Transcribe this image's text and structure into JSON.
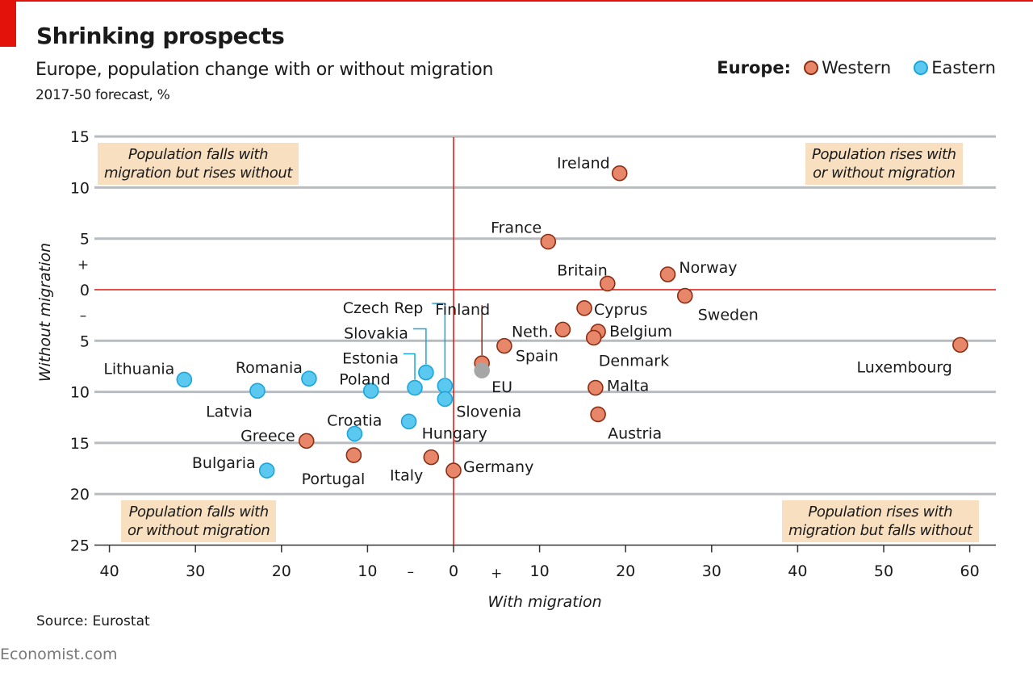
{
  "header": {
    "title": "Shrinking prospects",
    "subtitle": "Europe, population change with or without migration",
    "units": "2017-50 forecast, %"
  },
  "legend": {
    "label": "Europe:",
    "items": [
      {
        "name": "Western",
        "fill": "#e8866a",
        "stroke": "#8b2e14"
      },
      {
        "name": "Eastern",
        "fill": "#5bc8ef",
        "stroke": "#1aa6dc"
      }
    ]
  },
  "footer": {
    "source": "Source: Eurostat",
    "brand": "Economist.com"
  },
  "colors": {
    "accent": "#e3120b",
    "grid": "#b8bcc0",
    "quadrant_box": "#f7dfc0",
    "eu": "#a6a6a6"
  },
  "chart_data": {
    "type": "scatter",
    "title": "Shrinking prospects",
    "subtitle": "Europe, population change with or without migration, 2017-50 forecast, %",
    "xlabel": "With migration",
    "ylabel": "Without migration",
    "xlim": [
      -42,
      63
    ],
    "ylim": [
      -25,
      15
    ],
    "x_ticks": [
      -40,
      -30,
      -20,
      -10,
      0,
      10,
      20,
      30,
      40,
      50,
      60
    ],
    "x_tick_labels": [
      "40",
      "30",
      "20",
      "10",
      "0",
      "10",
      "20",
      "30",
      "40",
      "50",
      "60"
    ],
    "x_sign_labels": {
      "negative": "–",
      "positive": "+"
    },
    "y_ticks": [
      15,
      10,
      5,
      0,
      -5,
      -10,
      -15,
      -20,
      -25
    ],
    "y_tick_labels": [
      "15",
      "10",
      "5",
      "0",
      "5",
      "10",
      "15",
      "20",
      "25"
    ],
    "y_sign_labels": {
      "positive": "+",
      "negative": "–"
    },
    "grid": true,
    "legend_position": "top-right",
    "quadrant_labels": {
      "top_left": [
        "Population falls with",
        "migration but rises without"
      ],
      "top_right": [
        "Population rises with",
        "or without migration"
      ],
      "bottom_left": [
        "Population falls with",
        "or without migration"
      ],
      "bottom_right": [
        "Population rises with",
        "migration but falls without"
      ]
    },
    "series": [
      {
        "name": "Western",
        "points": [
          {
            "label": "Ireland",
            "x": 19.3,
            "y": 11.4
          },
          {
            "label": "France",
            "x": 11.0,
            "y": 4.7
          },
          {
            "label": "Britain",
            "x": 17.9,
            "y": 0.6
          },
          {
            "label": "Norway",
            "x": 24.9,
            "y": 1.5
          },
          {
            "label": "Sweden",
            "x": 26.9,
            "y": -0.6
          },
          {
            "label": "Cyprus",
            "x": 15.2,
            "y": -1.8
          },
          {
            "label": "Neth.",
            "x": 12.7,
            "y": -3.9
          },
          {
            "label": "Belgium",
            "x": 16.8,
            "y": -4.1
          },
          {
            "label": "Denmark",
            "x": 16.3,
            "y": -4.7
          },
          {
            "label": "Spain",
            "x": 5.9,
            "y": -5.5
          },
          {
            "label": "Finland",
            "x": 3.3,
            "y": -7.2
          },
          {
            "label": "Malta",
            "x": 16.5,
            "y": -9.6
          },
          {
            "label": "Austria",
            "x": 16.8,
            "y": -12.2
          },
          {
            "label": "Luxembourg",
            "x": 58.9,
            "y": -5.4
          },
          {
            "label": "Germany",
            "x": 0.0,
            "y": -17.7
          },
          {
            "label": "Italy",
            "x": -2.6,
            "y": -16.4
          },
          {
            "label": "Portugal",
            "x": -11.6,
            "y": -16.2
          },
          {
            "label": "Greece",
            "x": -17.1,
            "y": -14.8
          }
        ]
      },
      {
        "name": "Eastern",
        "points": [
          {
            "label": "Lithuania",
            "x": -31.3,
            "y": -8.8
          },
          {
            "label": "Latvia",
            "x": -22.8,
            "y": -9.9
          },
          {
            "label": "Romania",
            "x": -16.8,
            "y": -8.7
          },
          {
            "label": "Bulgaria",
            "x": -21.7,
            "y": -17.7
          },
          {
            "label": "Croatia",
            "x": -11.5,
            "y": -14.1
          },
          {
            "label": "Poland",
            "x": -9.6,
            "y": -9.9
          },
          {
            "label": "Estonia",
            "x": -4.5,
            "y": -9.6
          },
          {
            "label": "Slovakia",
            "x": -3.2,
            "y": -8.1
          },
          {
            "label": "Czech Rep",
            "x": -1.0,
            "y": -9.4
          },
          {
            "label": "Slovenia",
            "x": -1.0,
            "y": -10.7
          },
          {
            "label": "Hungary",
            "x": -5.2,
            "y": -12.9
          }
        ]
      },
      {
        "name": "EU",
        "points": [
          {
            "label": "EU",
            "x": 3.3,
            "y": -7.9
          }
        ]
      }
    ]
  }
}
